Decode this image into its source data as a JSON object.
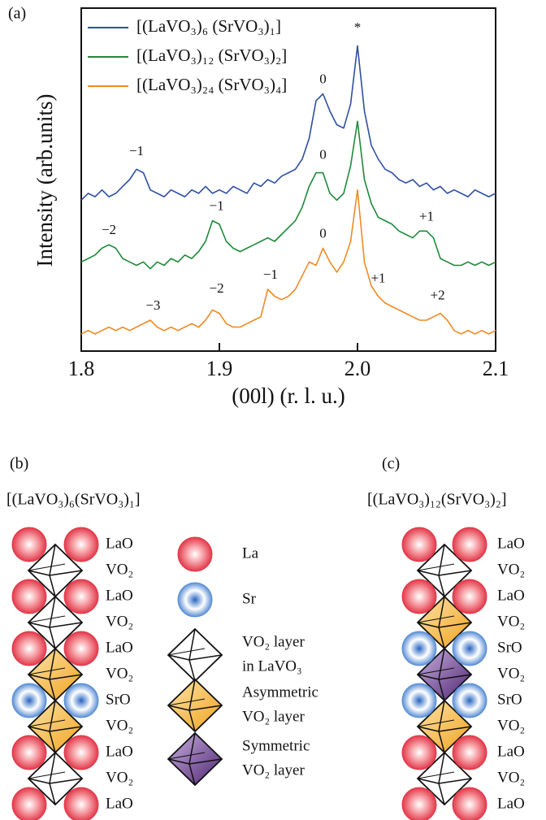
{
  "chart_data": {
    "type": "line",
    "panel_label": "(a)",
    "xlabel": "(00l) (r. l. u.)",
    "ylabel": "Intensity (arb.units)",
    "x": [
      1.8,
      1.805,
      1.81,
      1.815,
      1.82,
      1.825,
      1.83,
      1.835,
      1.84,
      1.845,
      1.85,
      1.855,
      1.86,
      1.865,
      1.87,
      1.875,
      1.88,
      1.885,
      1.89,
      1.895,
      1.9,
      1.905,
      1.91,
      1.915,
      1.92,
      1.925,
      1.93,
      1.935,
      1.94,
      1.945,
      1.95,
      1.955,
      1.96,
      1.965,
      1.97,
      1.975,
      1.98,
      1.985,
      1.99,
      1.995,
      2.0,
      2.005,
      2.01,
      2.015,
      2.02,
      2.025,
      2.03,
      2.035,
      2.04,
      2.045,
      2.05,
      2.055,
      2.06,
      2.065,
      2.07,
      2.075,
      2.08,
      2.085,
      2.09,
      2.095,
      2.1
    ],
    "series": [
      {
        "name": "[(LaVO₃)₆ (SrVO₃)₁]",
        "color": "#2e4fa3",
        "values": [
          4.4,
          4.6,
          4.5,
          4.7,
          4.5,
          4.6,
          4.8,
          5.0,
          5.3,
          5.2,
          4.7,
          4.6,
          4.5,
          4.7,
          4.6,
          4.5,
          4.7,
          4.6,
          4.8,
          4.6,
          4.7,
          4.6,
          4.8,
          4.7,
          4.6,
          4.9,
          4.8,
          5.0,
          4.9,
          5.1,
          5.2,
          5.3,
          5.6,
          6.2,
          7.3,
          7.5,
          7.0,
          6.6,
          6.5,
          7.2,
          8.9,
          7.0,
          6.0,
          5.6,
          5.3,
          5.2,
          5.0,
          4.9,
          5.0,
          4.8,
          4.9,
          4.7,
          4.8,
          4.6,
          4.7,
          4.6,
          4.5,
          4.7,
          4.6,
          4.5,
          4.6
        ]
      },
      {
        "name": "[(LaVO₃)₁₂ (SrVO₃)₂]",
        "color": "#1f8a3a",
        "values": [
          2.6,
          2.7,
          2.8,
          3.0,
          3.1,
          3.0,
          2.7,
          2.6,
          2.5,
          2.6,
          2.4,
          2.6,
          2.5,
          2.7,
          2.6,
          2.8,
          2.7,
          2.9,
          3.2,
          3.8,
          3.7,
          3.2,
          3.0,
          2.9,
          3.0,
          3.1,
          3.2,
          3.3,
          3.2,
          3.4,
          3.6,
          3.8,
          4.2,
          4.8,
          5.2,
          5.2,
          4.6,
          4.4,
          4.6,
          5.4,
          6.7,
          5.0,
          4.3,
          3.9,
          3.8,
          3.7,
          3.5,
          3.4,
          3.3,
          3.5,
          3.5,
          3.3,
          2.7,
          2.6,
          2.5,
          2.5,
          2.6,
          2.5,
          2.6,
          2.5,
          2.6
        ]
      },
      {
        "name": "[(LaVO₃)₂₄ (SrVO₃)₄]",
        "color": "#f08a24",
        "values": [
          0.5,
          0.6,
          0.5,
          0.6,
          0.7,
          0.6,
          0.7,
          0.6,
          0.7,
          0.8,
          0.9,
          0.7,
          0.6,
          0.7,
          0.6,
          0.7,
          0.8,
          0.7,
          0.9,
          1.2,
          1.1,
          0.8,
          0.7,
          0.7,
          0.8,
          0.9,
          1.0,
          1.8,
          1.6,
          1.5,
          1.6,
          1.8,
          2.2,
          2.6,
          2.5,
          3.0,
          2.6,
          2.3,
          2.6,
          3.2,
          4.7,
          2.6,
          1.9,
          1.6,
          1.4,
          1.3,
          1.2,
          1.1,
          1.0,
          0.9,
          0.9,
          1.0,
          1.1,
          0.9,
          0.6,
          0.5,
          0.6,
          0.5,
          0.6,
          0.5,
          0.6
        ]
      }
    ],
    "xlim": [
      1.8,
      2.1
    ],
    "xticks": [
      1.8,
      1.9,
      {
        "value": 2.0,
        "label": "2.0"
      },
      2.1
    ],
    "ylim": [
      0,
      10
    ],
    "legend": "upper left",
    "annotations": [
      {
        "text": "*",
        "x": 2.0,
        "y": 9.4
      },
      {
        "text": "0",
        "x": 1.975,
        "y": 7.9
      },
      {
        "text": "−1",
        "x": 1.84,
        "y": 5.8
      },
      {
        "text": "0",
        "x": 1.975,
        "y": 5.7
      },
      {
        "text": "−2",
        "x": 1.82,
        "y": 3.5
      },
      {
        "text": "−1",
        "x": 1.898,
        "y": 4.2
      },
      {
        "text": "+1",
        "x": 2.05,
        "y": 3.9
      },
      {
        "text": "0",
        "x": 1.975,
        "y": 3.4
      },
      {
        "text": "−1",
        "x": 1.937,
        "y": 2.2
      },
      {
        "text": "−2",
        "x": 1.898,
        "y": 1.8
      },
      {
        "text": "−3",
        "x": 1.852,
        "y": 1.3
      },
      {
        "text": "+1",
        "x": 2.015,
        "y": 2.1
      },
      {
        "text": "+2",
        "x": 2.058,
        "y": 1.6
      }
    ]
  },
  "panel_b": {
    "label": "(b)",
    "title": "[(LaVO₃)₆(SrVO₃)₁]",
    "layers": [
      "LaO",
      "VO₂",
      "LaO",
      "VO₂",
      "LaO",
      "VO₂",
      "SrO",
      "VO₂",
      "LaO",
      "VO₂",
      "LaO"
    ]
  },
  "panel_c": {
    "label": "(c)",
    "title": "[(LaVO₃)₁₂(SrVO₃)₂]",
    "layers": [
      "LaO",
      "VO₂",
      "LaO",
      "VO₂",
      "SrO",
      "VO₂",
      "SrO",
      "VO₂",
      "LaO",
      "VO₂",
      "LaO"
    ]
  },
  "key": [
    {
      "lines": [
        "La"
      ]
    },
    {
      "lines": [
        "Sr"
      ]
    },
    {
      "lines": [
        "VO₂ layer",
        "in LaVO₃"
      ]
    },
    {
      "lines": [
        "Asymmetric",
        "VO₂ layer"
      ]
    },
    {
      "lines": [
        "Symmetric",
        "VO₂ layer"
      ]
    }
  ]
}
